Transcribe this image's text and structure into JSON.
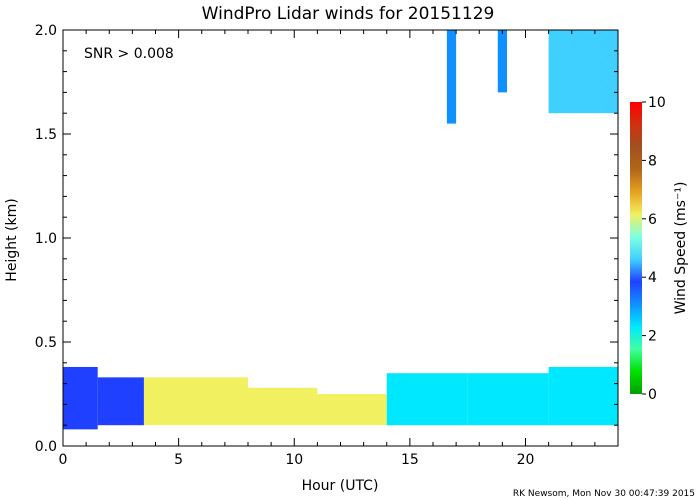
{
  "chart_data": {
    "type": "heatmap",
    "title": "WindPro Lidar winds for 20151129",
    "xlabel": "Hour (UTC)",
    "ylabel": "Height (km)",
    "annotation": "SNR > 0.008",
    "footer": "RK Newsom, Mon Nov 30 00:47:39 2015",
    "xlim": [
      0,
      24
    ],
    "ylim": [
      0.0,
      2.0
    ],
    "x_ticks": [
      0,
      5,
      10,
      15,
      20
    ],
    "y_ticks": [
      0.0,
      0.5,
      1.0,
      1.5,
      2.0
    ],
    "y_tick_labels": [
      "0.0",
      "0.5",
      "1.0",
      "1.5",
      "2.0"
    ],
    "colorbar": {
      "label": "Wind Speed (ms⁻¹)",
      "range": [
        0,
        10
      ],
      "ticks": [
        0,
        2,
        4,
        6,
        8,
        10
      ],
      "colormap": [
        "#00a000",
        "#00e000",
        "#40ffa0",
        "#00e8ff",
        "#1090ff",
        "#2040ff",
        "#40d0ff",
        "#80ffe0",
        "#f0f060",
        "#e8a020",
        "#b06818",
        "#a05020",
        "#d03010",
        "#ff0000"
      ]
    },
    "grid": false,
    "legend": "none",
    "series": [
      {
        "speed_profile": [
          {
            "x": [
              0,
              1.5
            ],
            "y": [
              0.08,
              0.38
            ],
            "speed": 3.6
          },
          {
            "x": [
              1.5,
              3.5
            ],
            "y": [
              0.1,
              0.33
            ],
            "speed": 4.2
          },
          {
            "x": [
              3.5,
              8
            ],
            "y": [
              0.1,
              0.33
            ],
            "speed": 5.8
          },
          {
            "x": [
              8,
              11
            ],
            "y": [
              0.1,
              0.28
            ],
            "speed": 6.2
          },
          {
            "x": [
              11,
              14
            ],
            "y": [
              0.1,
              0.25
            ],
            "speed": 6.0
          },
          {
            "x": [
              14,
              17.5
            ],
            "y": [
              0.1,
              0.35
            ],
            "speed": 2.8
          },
          {
            "x": [
              17.5,
              21
            ],
            "y": [
              0.1,
              0.35
            ],
            "speed": 2.6
          },
          {
            "x": [
              21,
              24
            ],
            "y": [
              0.1,
              0.38
            ],
            "speed": 2.4
          },
          {
            "x": [
              16.6,
              17.0
            ],
            "y": [
              1.55,
              2.0
            ],
            "speed": 3.5
          },
          {
            "x": [
              18.8,
              19.2
            ],
            "y": [
              1.7,
              2.0
            ],
            "speed": 3.2
          },
          {
            "x": [
              21.0,
              24.0
            ],
            "y": [
              1.6,
              2.0
            ],
            "speed": 4.5
          }
        ]
      }
    ]
  }
}
